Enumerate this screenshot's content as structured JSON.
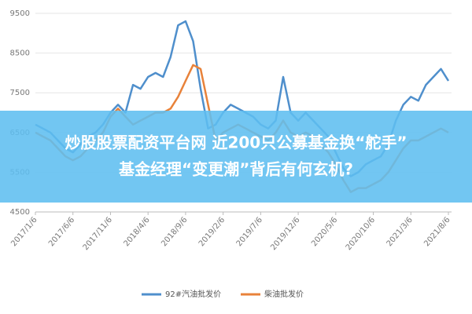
{
  "chart_data": {
    "type": "line",
    "categories": [
      "2017/1/6",
      null,
      null,
      null,
      null,
      "2017/6/6",
      null,
      null,
      null,
      null,
      "2017/11/6",
      null,
      null,
      null,
      null,
      "2018/4/6",
      null,
      null,
      null,
      null,
      "2018/9/6",
      null,
      null,
      null,
      null,
      "2019/2/6",
      null,
      null,
      null,
      null,
      "2019/7/6",
      null,
      null,
      null,
      null,
      "2019/12/6",
      null,
      null,
      null,
      null,
      "2020/5/6",
      null,
      null,
      null,
      null,
      "2020/10/6",
      null,
      null,
      null,
      null,
      "2021/3/6",
      null,
      null,
      null,
      null,
      "2021/8/6"
    ],
    "series": [
      {
        "name": "92#汽油批发价",
        "color": "#4f8fcc",
        "values": [
          6700,
          6600,
          6500,
          6300,
          6100,
          6000,
          6200,
          6400,
          6500,
          6700,
          7000,
          7200,
          7000,
          7700,
          7600,
          7900,
          8000,
          7900,
          8400,
          9200,
          9300,
          8800,
          7600,
          6600,
          6700,
          7000,
          7200,
          7100,
          7000,
          6900,
          6700,
          6600,
          6800,
          7900,
          7000,
          6800,
          7000,
          6800,
          6600,
          6400,
          6000,
          5600,
          5400,
          5500,
          5700,
          5800,
          5900,
          6200,
          6800,
          7200,
          7400,
          7300,
          7700,
          7900,
          8100,
          7800
        ]
      },
      {
        "name": "柴油批发价",
        "color": "#e8823a",
        "values": [
          6500,
          6400,
          6300,
          6100,
          5900,
          5800,
          5900,
          6100,
          6300,
          6500,
          6900,
          7100,
          6900,
          6700,
          6800,
          6900,
          7000,
          7000,
          7100,
          7400,
          7800,
          8200,
          8100,
          7200,
          6300,
          6500,
          6600,
          6700,
          6600,
          6500,
          6400,
          6300,
          6500,
          6800,
          6500,
          6400,
          6500,
          6400,
          6200,
          6000,
          5700,
          5300,
          5000,
          5100,
          5100,
          5200,
          5300,
          5500,
          5800,
          6100,
          6300,
          6300,
          6400,
          6500,
          6600,
          6500
        ]
      }
    ],
    "ylim": [
      4500,
      9500
    ],
    "yticks": [
      4500,
      5500,
      6500,
      7500,
      8500,
      9500
    ],
    "grid": true
  },
  "banner": {
    "lines": [
      "炒股股票配资平台网 近200只公募基金换“舵手”",
      "基金经理“变更潮”背后有何玄机?"
    ]
  }
}
